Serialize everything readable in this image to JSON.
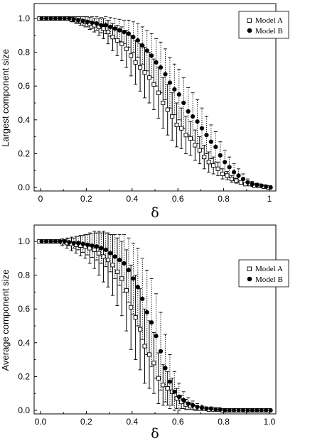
{
  "chart_data": [
    {
      "type": "scatter",
      "xlabel": "δ",
      "ylabel": "Largest component size",
      "xlim": [
        0,
        1
      ],
      "ylim": [
        0,
        1.05
      ],
      "x_ticks": [
        "0",
        "0.2",
        "0.4",
        "0.6",
        "0.8",
        "1"
      ],
      "y_ticks": [
        "0.0",
        "0.2",
        "0.4",
        "0.6",
        "0.8",
        "1.0"
      ],
      "grid": false,
      "legend": "top-right",
      "x": [
        0.0,
        0.02,
        0.04,
        0.06,
        0.08,
        0.1,
        0.12,
        0.14,
        0.16,
        0.18,
        0.2,
        0.22,
        0.24,
        0.26,
        0.28,
        0.3,
        0.32,
        0.34,
        0.36,
        0.38,
        0.4,
        0.42,
        0.44,
        0.46,
        0.48,
        0.5,
        0.52,
        0.54,
        0.56,
        0.58,
        0.6,
        0.62,
        0.64,
        0.66,
        0.68,
        0.7,
        0.72,
        0.74,
        0.76,
        0.78,
        0.8,
        0.82,
        0.84,
        0.86,
        0.88,
        0.9,
        0.92,
        0.94,
        0.96,
        0.98,
        1.0
      ],
      "series": [
        {
          "name": "Model A",
          "marker": "open-square",
          "color": "#000000",
          "error_style": "solid",
          "values": [
            1.0,
            1.0,
            1.0,
            1.0,
            1.0,
            1.0,
            1.0,
            0.995,
            0.99,
            0.985,
            0.98,
            0.97,
            0.96,
            0.95,
            0.94,
            0.92,
            0.89,
            0.87,
            0.85,
            0.82,
            0.78,
            0.74,
            0.71,
            0.68,
            0.65,
            0.61,
            0.56,
            0.5,
            0.46,
            0.42,
            0.37,
            0.35,
            0.31,
            0.29,
            0.25,
            0.22,
            0.18,
            0.15,
            0.13,
            0.11,
            0.08,
            0.07,
            0.05,
            0.04,
            0.03,
            0.02,
            0.02,
            0.01,
            0.01,
            0.005,
            0.0
          ],
          "errors": [
            0.0,
            0.0,
            0.0,
            0.0,
            0.0,
            0.005,
            0.01,
            0.015,
            0.02,
            0.025,
            0.03,
            0.035,
            0.04,
            0.05,
            0.06,
            0.07,
            0.08,
            0.09,
            0.1,
            0.11,
            0.12,
            0.13,
            0.14,
            0.15,
            0.15,
            0.15,
            0.15,
            0.15,
            0.15,
            0.14,
            0.13,
            0.12,
            0.11,
            0.1,
            0.09,
            0.08,
            0.07,
            0.06,
            0.05,
            0.04,
            0.03,
            0.025,
            0.02,
            0.015,
            0.01,
            0.01,
            0.005,
            0.005,
            0.0,
            0.0,
            0.0
          ]
        },
        {
          "name": "Model B",
          "marker": "filled-circle",
          "color": "#000000",
          "error_style": "dotted",
          "values": [
            1.0,
            1.0,
            1.0,
            1.0,
            1.0,
            1.0,
            1.0,
            0.995,
            0.99,
            0.985,
            0.98,
            0.975,
            0.97,
            0.96,
            0.96,
            0.95,
            0.94,
            0.93,
            0.92,
            0.91,
            0.89,
            0.87,
            0.84,
            0.81,
            0.78,
            0.74,
            0.71,
            0.67,
            0.62,
            0.58,
            0.55,
            0.5,
            0.45,
            0.42,
            0.39,
            0.35,
            0.31,
            0.27,
            0.24,
            0.19,
            0.15,
            0.12,
            0.09,
            0.07,
            0.05,
            0.03,
            0.02,
            0.015,
            0.01,
            0.005,
            0.0
          ],
          "errors": [
            0.0,
            0.0,
            0.0,
            0.0,
            0.0,
            0.005,
            0.01,
            0.015,
            0.02,
            0.025,
            0.03,
            0.035,
            0.04,
            0.045,
            0.05,
            0.055,
            0.06,
            0.065,
            0.07,
            0.08,
            0.09,
            0.1,
            0.11,
            0.12,
            0.13,
            0.14,
            0.15,
            0.15,
            0.15,
            0.15,
            0.15,
            0.15,
            0.14,
            0.14,
            0.13,
            0.12,
            0.11,
            0.1,
            0.09,
            0.08,
            0.07,
            0.06,
            0.05,
            0.04,
            0.03,
            0.02,
            0.015,
            0.01,
            0.0,
            0.0,
            0.0
          ]
        }
      ]
    },
    {
      "type": "scatter",
      "xlabel": "δ",
      "ylabel": "Average component size",
      "xlim": [
        0,
        1
      ],
      "ylim": [
        0,
        1.1
      ],
      "x_ticks": [
        "0.0",
        "0.2",
        "0.4",
        "0.6",
        "0.8",
        "1.0"
      ],
      "y_ticks": [
        "0.0",
        "0.2",
        "0.4",
        "0.6",
        "0.8",
        "1.0"
      ],
      "grid": false,
      "legend": "top-right",
      "x": [
        0.0,
        0.02,
        0.04,
        0.06,
        0.08,
        0.1,
        0.12,
        0.14,
        0.16,
        0.18,
        0.2,
        0.22,
        0.24,
        0.26,
        0.28,
        0.3,
        0.32,
        0.34,
        0.36,
        0.38,
        0.4,
        0.42,
        0.44,
        0.46,
        0.48,
        0.5,
        0.52,
        0.54,
        0.56,
        0.58,
        0.6,
        0.62,
        0.64,
        0.66,
        0.68,
        0.7,
        0.72,
        0.74,
        0.76,
        0.78,
        0.8,
        0.82,
        0.84,
        0.86,
        0.88,
        0.9,
        0.92,
        0.94,
        0.96,
        0.98,
        1.0
      ],
      "series": [
        {
          "name": "Model A",
          "marker": "open-square",
          "color": "#000000",
          "error_style": "solid",
          "values": [
            1.0,
            1.0,
            1.0,
            1.0,
            1.0,
            0.995,
            0.99,
            0.985,
            0.98,
            0.975,
            0.97,
            0.96,
            0.95,
            0.93,
            0.91,
            0.89,
            0.86,
            0.82,
            0.78,
            0.71,
            0.61,
            0.55,
            0.48,
            0.38,
            0.33,
            0.28,
            0.19,
            0.15,
            0.13,
            0.11,
            0.07,
            0.05,
            0.035,
            0.025,
            0.015,
            0.01,
            0.01,
            0.005,
            0.005,
            0.005,
            0.0,
            0.0,
            0.0,
            0.0,
            0.0,
            0.0,
            0.0,
            0.0,
            0.0,
            0.0,
            0.0
          ],
          "errors": [
            0.0,
            0.0,
            0.0,
            0.0,
            0.0,
            0.02,
            0.03,
            0.04,
            0.05,
            0.06,
            0.07,
            0.09,
            0.11,
            0.13,
            0.15,
            0.16,
            0.18,
            0.2,
            0.22,
            0.24,
            0.25,
            0.25,
            0.24,
            0.22,
            0.2,
            0.18,
            0.15,
            0.12,
            0.1,
            0.08,
            0.06,
            0.04,
            0.03,
            0.02,
            0.015,
            0.01,
            0.01,
            0.005,
            0.005,
            0.0,
            0.0,
            0.0,
            0.0,
            0.0,
            0.0,
            0.0,
            0.0,
            0.0,
            0.0,
            0.0,
            0.0
          ]
        },
        {
          "name": "Model B",
          "marker": "filled-circle",
          "color": "#000000",
          "error_style": "dotted",
          "values": [
            1.0,
            1.0,
            1.0,
            1.0,
            1.0,
            1.0,
            0.995,
            0.99,
            0.99,
            0.985,
            0.98,
            0.975,
            0.97,
            0.96,
            0.95,
            0.93,
            0.91,
            0.89,
            0.87,
            0.83,
            0.78,
            0.73,
            0.66,
            0.58,
            0.52,
            0.44,
            0.35,
            0.25,
            0.17,
            0.11,
            0.08,
            0.06,
            0.04,
            0.03,
            0.02,
            0.015,
            0.01,
            0.01,
            0.005,
            0.005,
            0.0,
            0.0,
            0.0,
            0.0,
            0.0,
            0.0,
            0.0,
            0.0,
            0.0,
            0.0,
            0.0
          ],
          "errors": [
            0.0,
            0.0,
            0.0,
            0.0,
            0.0,
            0.01,
            0.02,
            0.03,
            0.04,
            0.05,
            0.06,
            0.07,
            0.08,
            0.09,
            0.1,
            0.11,
            0.13,
            0.15,
            0.17,
            0.19,
            0.21,
            0.23,
            0.24,
            0.25,
            0.26,
            0.25,
            0.23,
            0.2,
            0.16,
            0.12,
            0.08,
            0.05,
            0.035,
            0.025,
            0.02,
            0.015,
            0.01,
            0.01,
            0.005,
            0.0,
            0.0,
            0.0,
            0.0,
            0.0,
            0.0,
            0.0,
            0.0,
            0.0,
            0.0,
            0.0,
            0.0
          ]
        }
      ]
    }
  ]
}
